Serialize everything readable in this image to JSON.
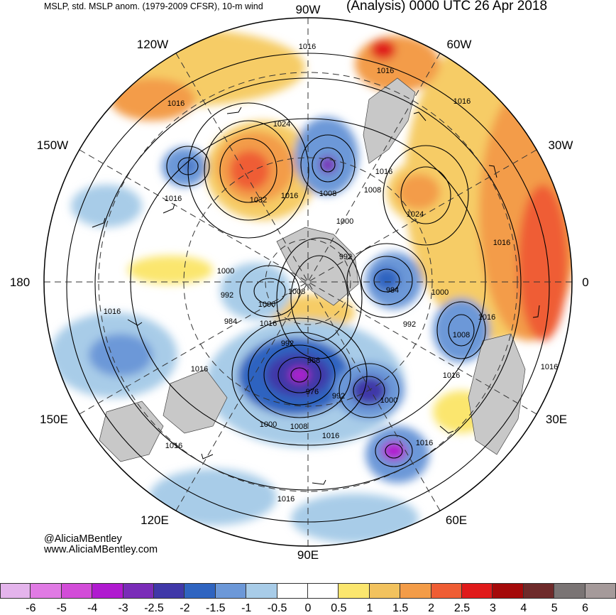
{
  "header": {
    "left_title": "MSLP, std. MSLP anom. (1979-2009 CFSR), 10-m wind",
    "right_title": "(Analysis) 0000 UTC 26 Apr 2018"
  },
  "map": {
    "projection": "north-polar-stereographic",
    "longitude_labels": [
      {
        "id": "90W",
        "text": "90W"
      },
      {
        "id": "60W",
        "text": "60W"
      },
      {
        "id": "30W",
        "text": "30W"
      },
      {
        "id": "0",
        "text": "0"
      },
      {
        "id": "30E",
        "text": "30E"
      },
      {
        "id": "60E",
        "text": "60E"
      },
      {
        "id": "90E",
        "text": "90E"
      },
      {
        "id": "120E",
        "text": "120E"
      },
      {
        "id": "150E",
        "text": "150E"
      },
      {
        "id": "180",
        "text": "180"
      },
      {
        "id": "150W",
        "text": "150W"
      },
      {
        "id": "120W",
        "text": "120W"
      }
    ],
    "isobar_labels": [
      "1016",
      "1016",
      "1016",
      "1016",
      "1024",
      "1024",
      "1032",
      "1016",
      "1008",
      "1016",
      "1008",
      "1000",
      "992",
      "1016",
      "1000",
      "992",
      "1008",
      "1000",
      "984",
      "1016",
      "984",
      "1000",
      "992",
      "1016",
      "1008",
      "1016",
      "992",
      "968",
      "976",
      "992",
      "1000",
      "1008",
      "1016",
      "1000",
      "1016",
      "1016",
      "1016",
      "1016",
      "1016",
      "1016",
      "1016"
    ],
    "colors": {
      "land": "#c8c8c8",
      "ocean": "#ffffff",
      "contour": "#000000"
    }
  },
  "colorbar": {
    "colors": [
      "#e4b4ec",
      "#e07ae4",
      "#d24cd8",
      "#b01ad0",
      "#7a2cb8",
      "#4038a8",
      "#2f64c0",
      "#6c98d8",
      "#a8cce8",
      "#ffffff",
      "#ffffff",
      "#fbe66e",
      "#f2c25e",
      "#f39c48",
      "#ef5d34",
      "#e01a1a",
      "#a50a0a",
      "#6e2a2a",
      "#7a7474",
      "#a59a9a"
    ],
    "ticks": [
      "-6",
      "-5",
      "-4",
      "-3",
      "-2.5",
      "-2",
      "-1.5",
      "-1",
      "-0.5",
      "0",
      "0.5",
      "1",
      "1.5",
      "2",
      "2.5",
      "3",
      "4",
      "5",
      "6"
    ]
  },
  "credits": {
    "handle": "@AliciaMBentley",
    "url": "www.AliciaMBentley.com"
  }
}
